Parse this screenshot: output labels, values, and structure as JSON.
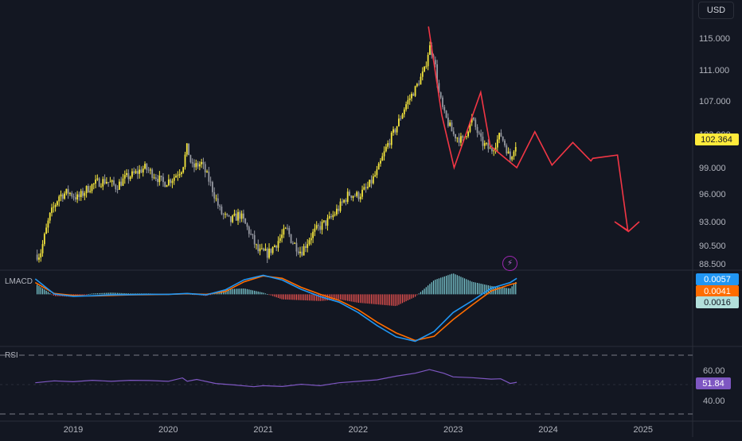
{
  "currency_label": "USD",
  "colors": {
    "background": "#131722",
    "candle_up": "#f5e63d",
    "candle_down": "#9598a1",
    "forecast_line": "#f23645",
    "macd_line": "#2196f3",
    "signal_line": "#ff6d00",
    "hist_pos": "#7ecfd6",
    "hist_neg": "#ef5350",
    "rsi_line": "#7e57c2",
    "price_badge": "#ffeb3b",
    "rsi_badge": "#7e57c2"
  },
  "price_pane": {
    "last_price": "102.364",
    "y_ticks": [
      "115.000",
      "111.000",
      "107.000",
      "103.000",
      "99.000",
      "96.000",
      "93.000",
      "90.500",
      "88.500"
    ]
  },
  "macd_pane": {
    "label": "LMACD",
    "values": {
      "macd": "0.0057",
      "signal": "0.0041",
      "histogram": "0.0016"
    }
  },
  "rsi_pane": {
    "label": "RSI",
    "value": "51.84",
    "y_ticks": [
      "60.00",
      "40.00"
    ]
  },
  "x_ticks": [
    "2019",
    "2020",
    "2021",
    "2022",
    "2023",
    "2024",
    "2025"
  ],
  "icons": {
    "alert": "lightning-icon"
  },
  "chart_data": [
    {
      "type": "candlestick",
      "title": "",
      "x_range": [
        2018.6,
        2025.4
      ],
      "ylim": [
        88.0,
        118.0
      ],
      "y_scale": "log",
      "grid": false,
      "anchors": [
        [
          2018.65,
          89.5
        ],
        [
          2018.75,
          93.5
        ],
        [
          2018.85,
          95.8
        ],
        [
          2018.95,
          96.2
        ],
        [
          2019.05,
          95.5
        ],
        [
          2019.15,
          96.6
        ],
        [
          2019.25,
          97.3
        ],
        [
          2019.35,
          97.5
        ],
        [
          2019.45,
          96.8
        ],
        [
          2019.55,
          97.8
        ],
        [
          2019.65,
          98.3
        ],
        [
          2019.75,
          99.0
        ],
        [
          2019.85,
          98.2
        ],
        [
          2019.95,
          97.2
        ],
        [
          2020.05,
          97.8
        ],
        [
          2020.15,
          99.0
        ],
        [
          2020.2,
          101.5
        ],
        [
          2020.25,
          99.0
        ],
        [
          2020.35,
          99.5
        ],
        [
          2020.45,
          97.0
        ],
        [
          2020.55,
          94.0
        ],
        [
          2020.65,
          93.0
        ],
        [
          2020.75,
          93.8
        ],
        [
          2020.85,
          92.0
        ],
        [
          2020.95,
          89.8
        ],
        [
          2021.05,
          89.6
        ],
        [
          2021.15,
          90.9
        ],
        [
          2021.25,
          92.2
        ],
        [
          2021.3,
          91.0
        ],
        [
          2021.4,
          89.8
        ],
        [
          2021.5,
          91.5
        ],
        [
          2021.6,
          92.5
        ],
        [
          2021.7,
          93.2
        ],
        [
          2021.8,
          94.5
        ],
        [
          2021.9,
          96.0
        ],
        [
          2022.0,
          95.8
        ],
        [
          2022.1,
          96.7
        ],
        [
          2022.2,
          98.5
        ],
        [
          2022.3,
          101.5
        ],
        [
          2022.4,
          103.8
        ],
        [
          2022.5,
          106.5
        ],
        [
          2022.6,
          108.5
        ],
        [
          2022.7,
          111.0
        ],
        [
          2022.75,
          114.0
        ],
        [
          2022.8,
          112.5
        ],
        [
          2022.85,
          108.0
        ],
        [
          2022.9,
          105.5
        ],
        [
          2023.0,
          103.0
        ],
        [
          2023.1,
          102.2
        ],
        [
          2023.2,
          104.8
        ],
        [
          2023.3,
          102.0
        ],
        [
          2023.4,
          101.0
        ],
        [
          2023.5,
          103.0
        ],
        [
          2023.55,
          101.6
        ],
        [
          2023.6,
          100.0
        ],
        [
          2023.65,
          101.8
        ]
      ]
    },
    {
      "type": "line",
      "title": "",
      "series": [
        {
          "x": [
            2022.74,
            2022.88,
            2023.01,
            2023.29,
            2023.39,
            2023.67,
            2023.86,
            2024.04,
            2024.26,
            2024.45,
            2024.47,
            2024.73,
            2024.84,
            2024.7,
            2024.85,
            2024.96
          ],
          "y": [
            116.5,
            105.3,
            99.0,
            108.1,
            101.6,
            99.0,
            103.3,
            99.3,
            102.0,
            99.8,
            100.1,
            100.5,
            92.0,
            93.0,
            92.0,
            93.0
          ]
        }
      ]
    },
    {
      "type": "line",
      "title": "",
      "ylim": [
        -0.0175,
        0.0075
      ],
      "series": [
        {
          "x": [
            2018.6,
            2018.8,
            2019.0,
            2019.2,
            2019.4,
            2019.6,
            2019.8,
            2020.0,
            2020.2,
            2020.4,
            2020.6,
            2020.8,
            2021.0,
            2021.2,
            2021.4,
            2021.6,
            2021.8,
            2022.0,
            2022.2,
            2022.4,
            2022.6,
            2022.8,
            2023.0,
            2023.2,
            2023.4,
            2023.6,
            2023.67
          ],
          "y": [
            0.0055,
            0.0001,
            -0.0007,
            -0.0005,
            -0.0002,
            -0.0001,
            0.0,
            0.0,
            0.0003,
            -0.0002,
            0.0016,
            0.0052,
            0.0068,
            0.0051,
            0.0018,
            -0.0008,
            -0.0028,
            -0.0065,
            -0.0112,
            -0.0152,
            -0.0168,
            -0.0133,
            -0.0065,
            -0.0023,
            0.0022,
            0.0042,
            0.0057
          ]
        },
        {
          "x": [
            2018.6,
            2018.8,
            2019.0,
            2019.2,
            2019.4,
            2019.6,
            2019.8,
            2020.0,
            2020.2,
            2020.4,
            2020.6,
            2020.8,
            2021.0,
            2021.2,
            2021.4,
            2021.6,
            2021.8,
            2022.0,
            2022.2,
            2022.4,
            2022.6,
            2022.8,
            2023.0,
            2023.2,
            2023.4,
            2023.6,
            2023.67
          ],
          "y": [
            0.0042,
            0.0003,
            -0.0004,
            -0.0006,
            -0.0004,
            -0.0002,
            -0.0001,
            0.0,
            0.0002,
            0.0,
            0.001,
            0.0045,
            0.0066,
            0.0057,
            0.0025,
            0.0,
            -0.0022,
            -0.0055,
            -0.01,
            -0.0138,
            -0.0165,
            -0.015,
            -0.009,
            -0.0038,
            0.0012,
            0.0035,
            0.0041
          ]
        }
      ]
    },
    {
      "type": "line",
      "title": "",
      "ylim": [
        30,
        70
      ],
      "series": [
        {
          "x": [
            2018.6,
            2018.8,
            2019.0,
            2019.2,
            2019.4,
            2019.6,
            2019.8,
            2020.0,
            2020.15,
            2020.2,
            2020.3,
            2020.5,
            2020.7,
            2020.9,
            2021.0,
            2021.2,
            2021.4,
            2021.6,
            2021.8,
            2022.0,
            2022.2,
            2022.4,
            2022.6,
            2022.75,
            2022.9,
            2023.0,
            2023.2,
            2023.4,
            2023.5,
            2023.6,
            2023.67
          ],
          "y": [
            51.5,
            52.8,
            52.2,
            53.2,
            52.5,
            53.2,
            53.0,
            52.5,
            54.8,
            52.5,
            53.8,
            51.0,
            50.0,
            48.8,
            49.5,
            49.0,
            50.5,
            49.5,
            51.5,
            52.5,
            53.5,
            56.0,
            58.0,
            60.5,
            58.0,
            55.5,
            55.0,
            54.0,
            54.2,
            51.0,
            51.84
          ]
        }
      ]
    }
  ]
}
